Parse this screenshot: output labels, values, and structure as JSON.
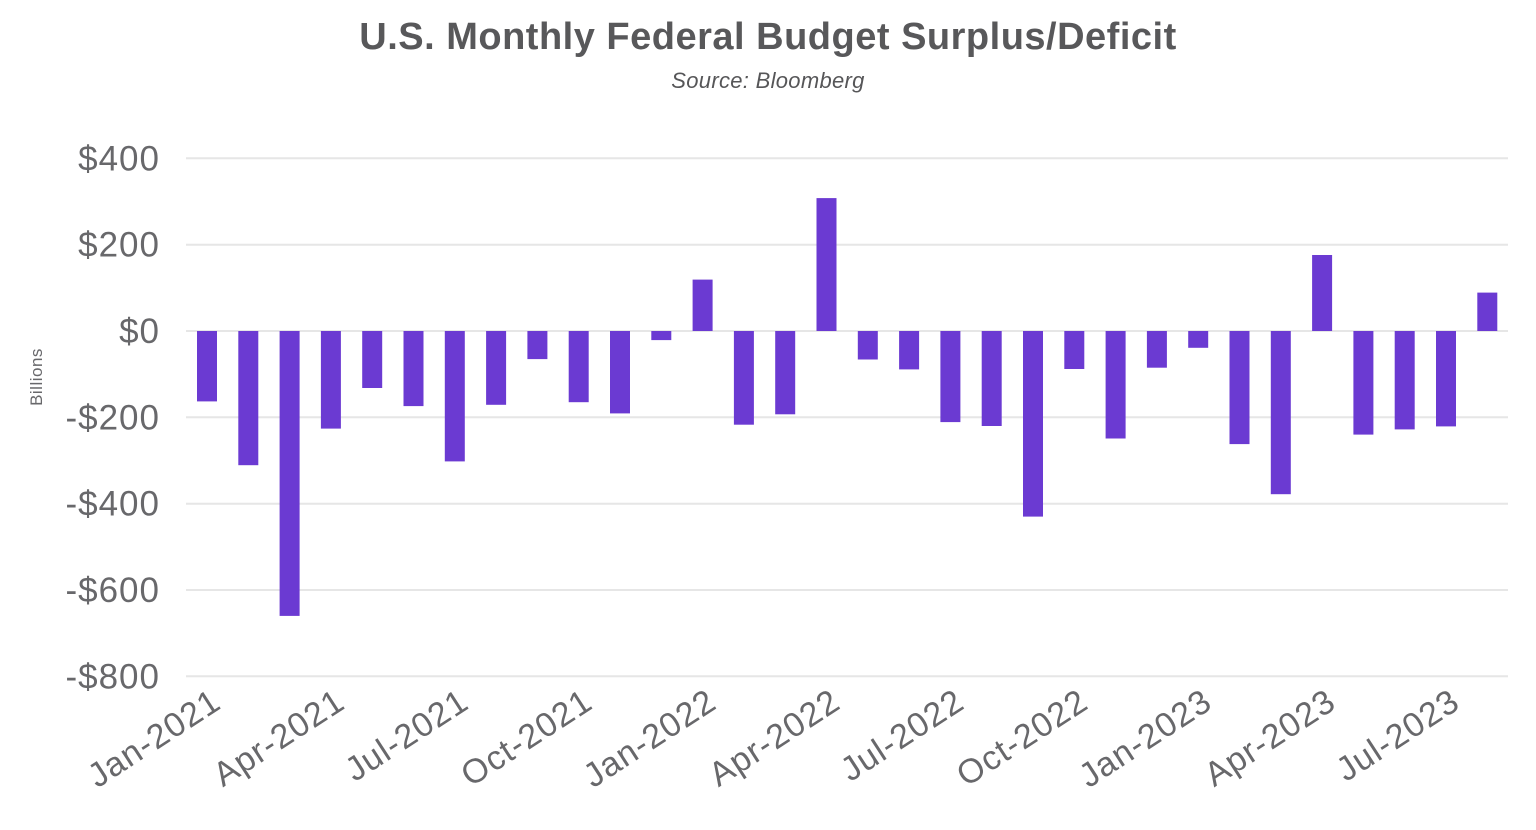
{
  "header": {
    "title": "U.S. Monthly Federal Budget Surplus/Deficit",
    "subtitle": "Source: Bloomberg"
  },
  "colors": {
    "background": "#ffffff",
    "bar": "#6B3AD2",
    "grid": "#E6E6E6",
    "title_text": "#58585A",
    "subtitle_text": "#565658",
    "axis_text": "#68686B"
  },
  "chart_data": {
    "type": "bar",
    "title": "U.S. Monthly Federal Budget Surplus/Deficit",
    "subtitle": "Source: Bloomberg",
    "xlabel": "",
    "ylabel": "Billions",
    "unit": "USD billions",
    "ylim": [
      -800,
      400
    ],
    "grid": "horizontal gridlines only, light gray, no axis lines",
    "legend": "none",
    "bar_color": "#6B3AD2",
    "y_ticks": [
      400,
      200,
      0,
      -200,
      -400,
      -600,
      -800
    ],
    "y_tick_labels": [
      "$400",
      "$200",
      "$0",
      "-$200",
      "-$400",
      "-$600",
      "-$800"
    ],
    "x_tick_every": 3,
    "x_tick_labels_shown": [
      "Jan-2021",
      "Apr-2021",
      "Jul-2021",
      "Oct-2021",
      "Jan-2022",
      "Apr-2022",
      "Jul-2022",
      "Oct-2022",
      "Jan-2023",
      "Apr-2023",
      "Jul-2023"
    ],
    "x_tick_rotation_deg": -33,
    "categories": [
      "Jan-2021",
      "Feb-2021",
      "Mar-2021",
      "Apr-2021",
      "May-2021",
      "Jun-2021",
      "Jul-2021",
      "Aug-2021",
      "Sep-2021",
      "Oct-2021",
      "Nov-2021",
      "Dec-2021",
      "Jan-2022",
      "Feb-2022",
      "Mar-2022",
      "Apr-2022",
      "May-2022",
      "Jun-2022",
      "Jul-2022",
      "Aug-2022",
      "Sep-2022",
      "Oct-2022",
      "Nov-2022",
      "Dec-2022",
      "Jan-2023",
      "Feb-2023",
      "Mar-2023",
      "Apr-2023",
      "May-2023",
      "Jun-2023",
      "Jul-2023",
      "Aug-2023"
    ],
    "values": [
      -163,
      -311,
      -660,
      -226,
      -132,
      -174,
      -302,
      -171,
      -65,
      -165,
      -191,
      -21,
      119,
      -217,
      -193,
      308,
      -66,
      -89,
      -211,
      -220,
      -430,
      -88,
      -249,
      -85,
      -39,
      -262,
      -378,
      176,
      -240,
      -228,
      -221,
      89
    ]
  }
}
